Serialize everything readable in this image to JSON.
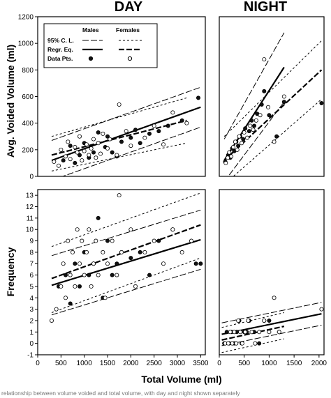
{
  "figure": {
    "col_titles": [
      "DAY",
      "NIGHT"
    ],
    "xlabel": "Total Volume (ml)",
    "caption": "relationship between volume voided and total volume, with day and night shown separately"
  },
  "legend": {
    "header_males": "Males",
    "header_females": "Females",
    "rows": [
      "95% C. L.",
      "Regr. Eq.",
      "Data Pts."
    ]
  },
  "colors": {
    "axis": "#000000",
    "male_point": "#111111",
    "female_point": "#ffffff"
  },
  "chart_data": [
    {
      "id": "day-volume",
      "type": "scatter",
      "title": "DAY",
      "ylabel": "Avg. Voided Volume (ml)",
      "xlim": [
        0,
        3600
      ],
      "ylim": [
        0,
        1200
      ],
      "xticks": [],
      "yticks": [
        0,
        200,
        400,
        600,
        800,
        1000,
        1200
      ],
      "series": [
        {
          "name": "Males",
          "kind": "regression",
          "x": [
            300,
            3500
          ],
          "y": [
            120,
            520
          ]
        },
        {
          "name": "Males",
          "kind": "ci",
          "x": [
            300,
            3500
          ],
          "y": [
            270,
            670
          ]
        },
        {
          "name": "Males",
          "kind": "ci",
          "x": [
            300,
            3500
          ],
          "y": [
            -30,
            370
          ]
        },
        {
          "name": "Females",
          "kind": "regression",
          "x": [
            300,
            3200
          ],
          "y": [
            160,
            420
          ]
        },
        {
          "name": "Females",
          "kind": "ci",
          "x": [
            300,
            3200
          ],
          "y": [
            300,
            590
          ]
        },
        {
          "name": "Females",
          "kind": "ci",
          "x": [
            300,
            3200
          ],
          "y": [
            40,
            250
          ]
        },
        {
          "name": "Males",
          "kind": "points",
          "x": [
            550,
            700,
            800,
            900,
            1000,
            1100,
            1200,
            1300,
            1450,
            1500,
            1600,
            1700,
            1800,
            2000,
            2100,
            2200,
            2400,
            2600,
            2800,
            3100,
            3450
          ],
          "y": [
            120,
            230,
            100,
            160,
            250,
            140,
            180,
            330,
            220,
            300,
            180,
            150,
            260,
            290,
            350,
            250,
            320,
            340,
            380,
            420,
            590
          ]
        },
        {
          "name": "Females",
          "kind": "points",
          "x": [
            350,
            450,
            500,
            600,
            650,
            700,
            800,
            850,
            900,
            950,
            1000,
            1050,
            1100,
            1150,
            1200,
            1250,
            1300,
            1350,
            1400,
            1500,
            1550,
            1700,
            1750,
            1900,
            2000,
            2300,
            2500,
            2700,
            2900,
            3200
          ],
          "y": [
            110,
            80,
            200,
            150,
            260,
            130,
            220,
            180,
            300,
            120,
            190,
            240,
            160,
            210,
            280,
            140,
            250,
            170,
            320,
            210,
            280,
            160,
            540,
            340,
            230,
            290,
            380,
            240,
            480,
            400
          ]
        }
      ]
    },
    {
      "id": "night-volume",
      "type": "scatter",
      "title": "NIGHT",
      "ylim": [
        0,
        1200
      ],
      "xlim": [
        0,
        2100
      ],
      "series": [
        {
          "name": "Males",
          "kind": "regression",
          "x": [
            100,
            1300
          ],
          "y": [
            120,
            820
          ]
        },
        {
          "name": "Males",
          "kind": "ci",
          "x": [
            100,
            1300
          ],
          "y": [
            280,
            1080
          ]
        },
        {
          "name": "Males",
          "kind": "ci",
          "x": [
            100,
            1300
          ],
          "y": [
            -40,
            560
          ]
        },
        {
          "name": "Females",
          "kind": "regression",
          "x": [
            100,
            2050
          ],
          "y": [
            120,
            800
          ]
        },
        {
          "name": "Females",
          "kind": "ci",
          "x": [
            100,
            2050
          ],
          "y": [
            300,
            1020
          ]
        },
        {
          "name": "Females",
          "kind": "ci",
          "x": [
            100,
            2050
          ],
          "y": [
            -60,
            580
          ]
        },
        {
          "name": "Males",
          "kind": "points",
          "x": [
            120,
            180,
            220,
            260,
            300,
            340,
            380,
            420,
            480,
            520,
            600,
            650,
            700,
            760,
            850,
            900,
            1000,
            1150,
            1300,
            2050
          ],
          "y": [
            110,
            160,
            140,
            210,
            190,
            260,
            230,
            300,
            280,
            360,
            340,
            420,
            380,
            470,
            540,
            640,
            460,
            300,
            560,
            550
          ]
        },
        {
          "name": "Females",
          "kind": "points",
          "x": [
            130,
            170,
            200,
            240,
            280,
            320,
            360,
            400,
            450,
            500,
            560,
            620,
            680,
            740,
            820,
            900,
            980,
            1100,
            1300
          ],
          "y": [
            100,
            140,
            180,
            150,
            220,
            260,
            200,
            300,
            250,
            330,
            290,
            380,
            350,
            420,
            460,
            880,
            520,
            260,
            600
          ]
        }
      ]
    },
    {
      "id": "day-frequency",
      "type": "scatter",
      "ylabel": "Frequency",
      "xlim": [
        0,
        3600
      ],
      "ylim": [
        -1,
        13.5
      ],
      "xticks": [
        0,
        500,
        1000,
        1500,
        2000,
        2500,
        3000,
        3500
      ],
      "yticks": [
        -1,
        0,
        1,
        2,
        3,
        4,
        5,
        6,
        7,
        8,
        9,
        10,
        11,
        12,
        13
      ],
      "series": [
        {
          "name": "Males",
          "kind": "regression",
          "x": [
            300,
            3500
          ],
          "y": [
            5.1,
            9.1
          ]
        },
        {
          "name": "Males",
          "kind": "ci",
          "x": [
            300,
            3500
          ],
          "y": [
            2.5,
            6.5
          ]
        },
        {
          "name": "Males",
          "kind": "ci",
          "x": [
            300,
            3500
          ],
          "y": [
            7.7,
            11.7
          ]
        },
        {
          "name": "Females",
          "kind": "regression",
          "x": [
            300,
            3500
          ],
          "y": [
            5.7,
            10.4
          ]
        },
        {
          "name": "Females",
          "kind": "ci",
          "x": [
            300,
            3500
          ],
          "y": [
            2.7,
            7.5
          ]
        },
        {
          "name": "Females",
          "kind": "ci",
          "x": [
            300,
            3500
          ],
          "y": [
            8.5,
            13.2
          ]
        },
        {
          "name": "Males",
          "kind": "points",
          "x": [
            450,
            600,
            700,
            800,
            900,
            1000,
            1100,
            1200,
            1300,
            1400,
            1500,
            1600,
            1700,
            1800,
            2000,
            2200,
            2400,
            2600,
            2900,
            3400,
            3500
          ],
          "y": [
            5,
            6,
            3.5,
            7,
            5,
            8,
            6,
            7,
            11,
            4,
            9,
            6,
            7,
            8,
            7.5,
            8,
            6,
            9,
            10,
            7,
            7
          ],
          "label": "Data Pts."
        },
        {
          "name": "Females",
          "kind": "points",
          "x": [
            300,
            400,
            500,
            550,
            600,
            650,
            700,
            750,
            800,
            850,
            900,
            950,
            1000,
            1050,
            1100,
            1150,
            1200,
            1250,
            1300,
            1400,
            1450,
            1500,
            1600,
            1700,
            1750,
            1800,
            2000,
            2100,
            2300,
            2500,
            2700,
            2900,
            3100,
            3300
          ],
          "y": [
            2,
            3,
            5,
            7,
            4,
            9,
            6,
            8,
            5,
            10,
            7,
            9,
            6,
            8,
            10,
            5,
            7,
            9,
            6,
            8,
            4,
            7,
            9,
            6,
            13,
            8,
            10,
            5,
            8,
            9,
            7,
            10,
            8,
            9
          ]
        }
      ]
    },
    {
      "id": "night-frequency",
      "type": "scatter",
      "xlim": [
        0,
        2100
      ],
      "ylim": [
        -1,
        13.5
      ],
      "xticks": [
        0,
        500,
        1000,
        1500,
        2000
      ],
      "series": [
        {
          "name": "Males",
          "kind": "regression",
          "x": [
            50,
            2050
          ],
          "y": [
            0.8,
            2.6
          ]
        },
        {
          "name": "Males",
          "kind": "ci",
          "x": [
            50,
            2050
          ],
          "y": [
            1.8,
            3.6
          ]
        },
        {
          "name": "Males",
          "kind": "ci",
          "x": [
            50,
            2050
          ],
          "y": [
            -0.2,
            1.6
          ]
        },
        {
          "name": "Females",
          "kind": "regression",
          "x": [
            50,
            1300
          ],
          "y": [
            0.3,
            1.5
          ]
        },
        {
          "name": "Females",
          "kind": "ci",
          "x": [
            50,
            1300
          ],
          "y": [
            1.4,
            2.7
          ]
        },
        {
          "name": "Females",
          "kind": "ci",
          "x": [
            50,
            1300
          ],
          "y": [
            -0.8,
            0.4
          ]
        },
        {
          "name": "Males",
          "kind": "points",
          "x": [
            100,
            150,
            200,
            250,
            300,
            350,
            400,
            450,
            500,
            550,
            600,
            700,
            800,
            900,
            1000,
            1200
          ],
          "y": [
            0,
            1,
            0,
            1,
            0,
            1,
            2,
            0,
            1,
            1,
            2,
            1,
            0,
            2,
            2,
            1
          ]
        },
        {
          "name": "Females",
          "kind": "points",
          "x": [
            120,
            180,
            220,
            260,
            300,
            340,
            380,
            420,
            460,
            520,
            580,
            650,
            720,
            800,
            900,
            1000,
            1100,
            1200,
            2050
          ],
          "y": [
            0,
            0,
            1,
            0,
            1,
            0,
            2,
            1,
            0,
            1,
            2,
            1,
            0,
            1,
            2,
            1,
            4,
            1,
            3
          ]
        }
      ]
    }
  ]
}
